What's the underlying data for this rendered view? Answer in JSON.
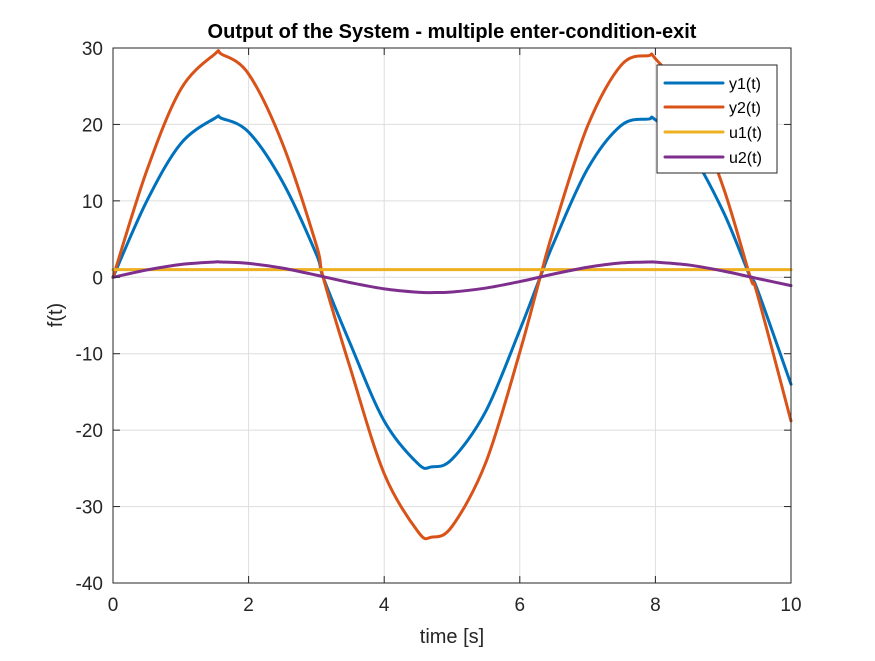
{
  "chart_data": {
    "type": "line",
    "title": "Output of the System - multiple enter-condition-exit",
    "xlabel": "time [s]",
    "ylabel": "f(t)",
    "xlim": [
      0,
      10
    ],
    "ylim": [
      -40,
      30
    ],
    "xticks": [
      0,
      2,
      4,
      6,
      8,
      10
    ],
    "xtick_labels": [
      "0",
      "2",
      "4",
      "6",
      "8",
      "10"
    ],
    "yticks": [
      -40,
      -30,
      -20,
      -10,
      0,
      10,
      20,
      30
    ],
    "ytick_labels": [
      "-40",
      "-30",
      "-20",
      "-10",
      "0",
      "10",
      "20",
      "30"
    ],
    "grid": true,
    "legend_position": "top-right",
    "x": [
      0,
      0.5,
      1,
      1.5,
      1.6,
      2,
      2.5,
      3,
      3.1,
      3.5,
      4,
      4.5,
      4.7,
      5,
      5.5,
      6,
      6.3,
      6.5,
      7,
      7.5,
      7.9,
      8,
      8.5,
      9,
      9.4,
      9.5,
      10
    ],
    "series": [
      {
        "name": "y1(t)",
        "color": "#0072BD",
        "values": [
          0,
          10,
          17.5,
          20.8,
          20.8,
          19,
          12.5,
          3,
          0,
          -8.7,
          -18.8,
          -24.4,
          -24.8,
          -23.8,
          -17.5,
          -6.9,
          0,
          4.5,
          14.2,
          19.9,
          20.7,
          20.6,
          16.6,
          8.6,
          0,
          -1.5,
          -14
        ]
      },
      {
        "name": "y2(t)",
        "color": "#D95319",
        "values": [
          0,
          14,
          24.6,
          29.2,
          29.2,
          26.6,
          17.5,
          4.2,
          0,
          -11.9,
          -25.7,
          -33.3,
          -34,
          -32.6,
          -24.2,
          -9.8,
          0,
          6.3,
          19.8,
          27.8,
          29,
          28.6,
          22.9,
          11.8,
          0,
          -2.1,
          -18.8
        ]
      },
      {
        "name": "u1(t)",
        "color": "#EDB120",
        "values": [
          1,
          1,
          1,
          1,
          1,
          1,
          1,
          1,
          1,
          1,
          1,
          1,
          1,
          1,
          1,
          1,
          1,
          1,
          1,
          1,
          1,
          1,
          1,
          1,
          1,
          1,
          1
        ]
      },
      {
        "name": "u2(t)",
        "color": "#7E2F8E",
        "values": [
          0,
          0.96,
          1.68,
          2,
          2,
          1.82,
          1.2,
          0.28,
          0.08,
          -0.7,
          -1.51,
          -1.96,
          -2,
          -1.92,
          -1.41,
          -0.56,
          0.03,
          0.43,
          1.31,
          1.88,
          2,
          1.98,
          1.6,
          0.82,
          0.05,
          -0.15,
          -1.09
        ]
      }
    ]
  }
}
